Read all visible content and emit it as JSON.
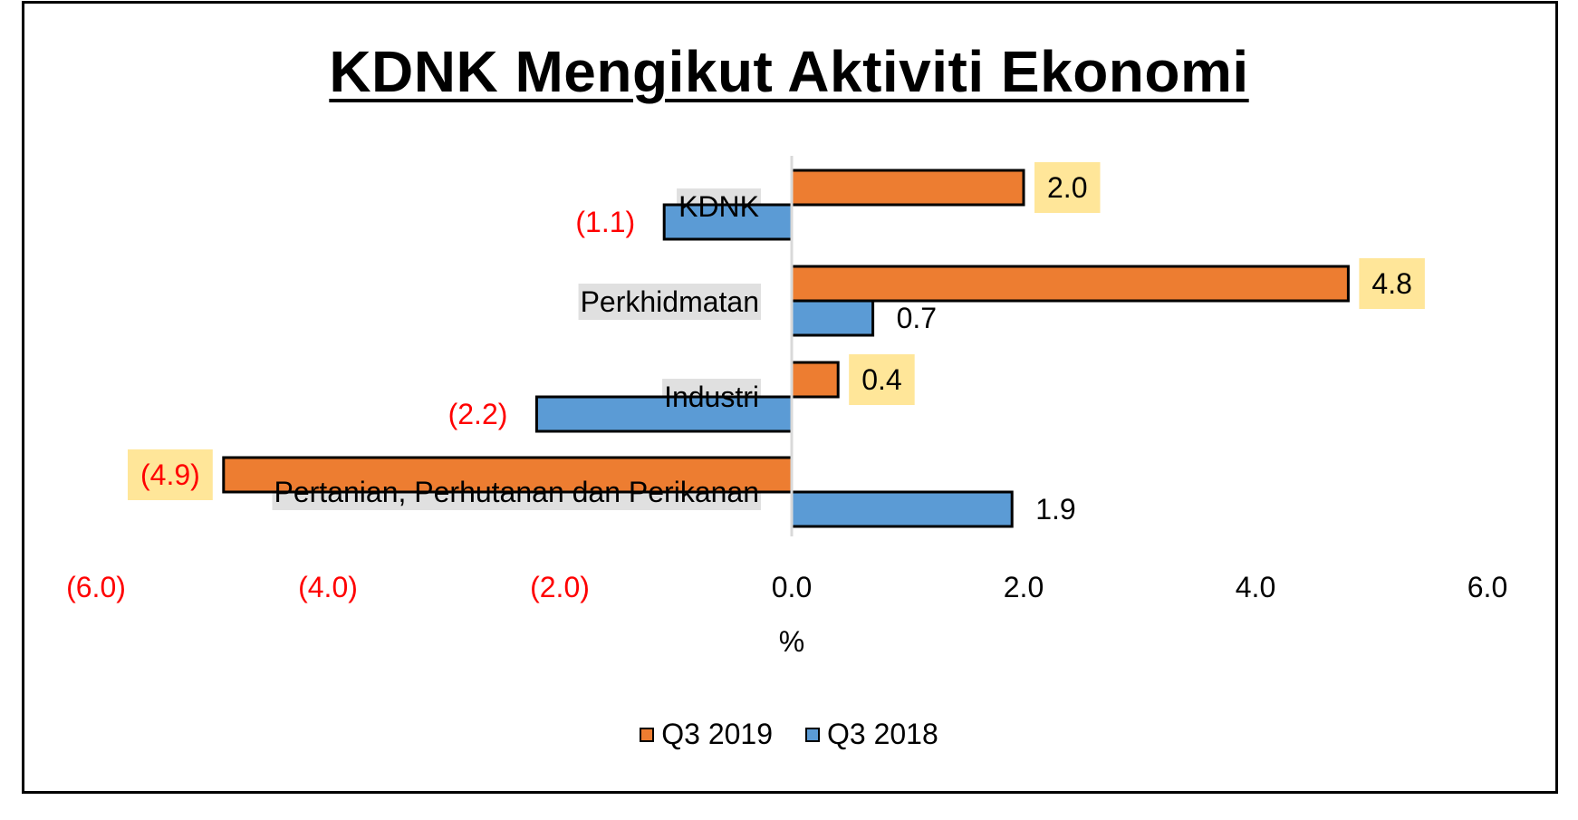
{
  "chart_data": {
    "type": "bar",
    "orientation": "horizontal",
    "title": "KDNK Mengikut Aktiviti Ekonomi",
    "xlabel": "%",
    "xlim": [
      -6.0,
      6.0
    ],
    "xticks": [
      -6.0,
      -4.0,
      -2.0,
      0.0,
      2.0,
      4.0,
      6.0
    ],
    "xtick_labels": [
      "(6.0)",
      "(4.0)",
      "(2.0)",
      "0.0",
      "2.0",
      "4.0",
      "6.0"
    ],
    "categories": [
      "KDNK",
      "Perkhidmatan",
      "Industri",
      "Pertanian, Perhutanan dan Perikanan"
    ],
    "series": [
      {
        "name": "Q3 2019",
        "color": "#ED7D31",
        "values": [
          2.0,
          4.8,
          0.4,
          -4.9
        ],
        "labels": [
          "2.0",
          "4.8",
          "0.4",
          "(4.9)"
        ]
      },
      {
        "name": "Q3 2018",
        "color": "#5B9BD5",
        "values": [
          -1.1,
          0.7,
          -2.2,
          1.9
        ],
        "labels": [
          "(1.1)",
          "0.7",
          "(2.2)",
          "1.9"
        ]
      }
    ],
    "negative_label_color": "#FF0000",
    "highlight_label_bg": "#FFE699",
    "category_label_bg": "#E0E0E0",
    "grid": false,
    "legend_position": "bottom"
  }
}
